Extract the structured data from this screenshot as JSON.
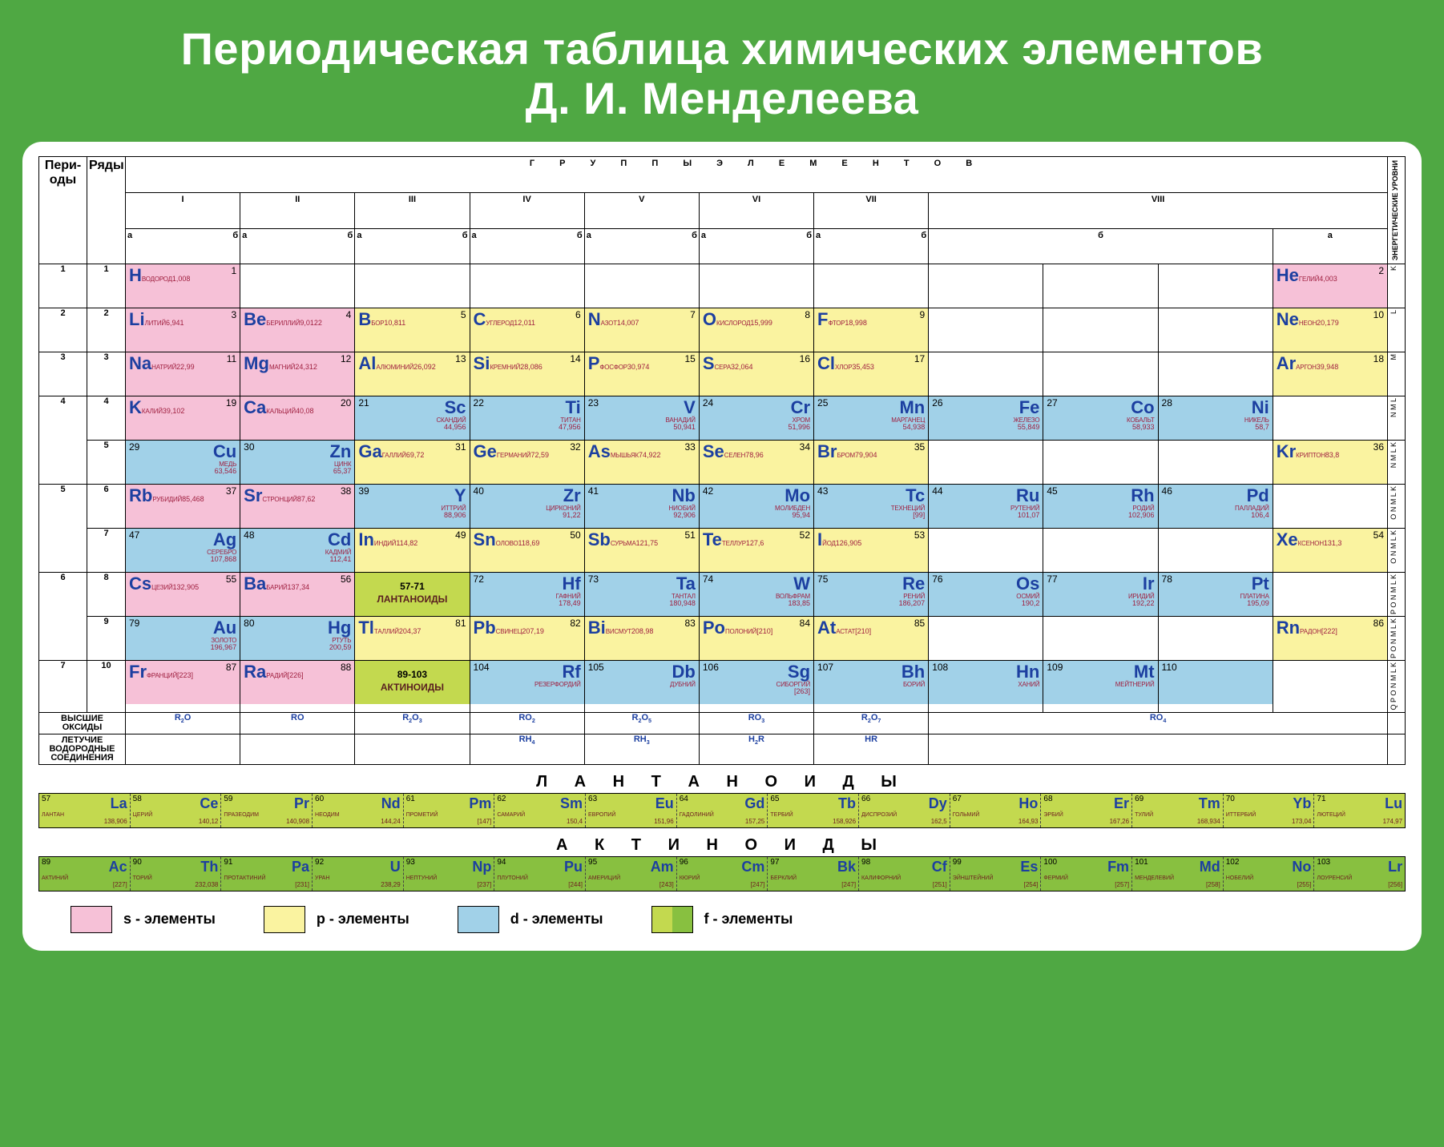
{
  "title_line1": "Периодическая таблица химических элементов",
  "title_line2": "Д. И. Менделеева",
  "headers": {
    "periods": "Пери-оды",
    "rows": "Ряды",
    "groups": "Г Р У П П Ы   Э Л Е М Е Н Т О В",
    "roman": [
      "I",
      "II",
      "III",
      "IV",
      "V",
      "VI",
      "VII",
      "VIII"
    ],
    "a": "а",
    "b": "б",
    "energy_levels": "ЭНЕРГЕТИЧЕСКИЕ УРОВНИ"
  },
  "colors": {
    "bg": "#4fa843",
    "s": "#f6c1d7",
    "p": "#faf3a0",
    "d": "#a1d1e8",
    "f1": "#c3d94f",
    "f2": "#88c040",
    "symbol": "#1c3fa0",
    "name": "#a02040"
  },
  "periods": [
    "1",
    "2",
    "3",
    "4",
    "5",
    "6",
    "7"
  ],
  "rows": [
    "1",
    "2",
    "3",
    "4",
    "5",
    "6",
    "7",
    "8",
    "9",
    "10"
  ],
  "side_labels": [
    "K",
    "L",
    "M",
    "N M L",
    "N M L K",
    "O N M L K",
    "O N M L K",
    "P O N M L K",
    "P O N M L K",
    "Q P O N M L K"
  ],
  "elements": {
    "H": {
      "num": "1",
      "sym": "H",
      "name": "ВОДОРОД",
      "mass": "1,008",
      "cls": "s-el"
    },
    "He": {
      "num": "2",
      "sym": "He",
      "name": "ГЕЛИЙ",
      "mass": "4,003",
      "cls": "s-el"
    },
    "Li": {
      "num": "3",
      "sym": "Li",
      "name": "ЛИТИЙ",
      "mass": "6,941",
      "cls": "s-el"
    },
    "Be": {
      "num": "4",
      "sym": "Be",
      "name": "БЕРИЛЛИЙ",
      "mass": "9,0122",
      "cls": "s-el"
    },
    "B": {
      "num": "5",
      "sym": "B",
      "name": "БОР",
      "mass": "10,811",
      "cls": "p-el"
    },
    "C": {
      "num": "6",
      "sym": "C",
      "name": "УГЛЕРОД",
      "mass": "12,011",
      "cls": "p-el"
    },
    "N": {
      "num": "7",
      "sym": "N",
      "name": "АЗОТ",
      "mass": "14,007",
      "cls": "p-el"
    },
    "O": {
      "num": "8",
      "sym": "O",
      "name": "КИСЛОРОД",
      "mass": "15,999",
      "cls": "p-el"
    },
    "F": {
      "num": "9",
      "sym": "F",
      "name": "ФТОР",
      "mass": "18,998",
      "cls": "p-el"
    },
    "Ne": {
      "num": "10",
      "sym": "Ne",
      "name": "НЕОН",
      "mass": "20,179",
      "cls": "p-el"
    },
    "Na": {
      "num": "11",
      "sym": "Na",
      "name": "НАТРИЙ",
      "mass": "22,99",
      "cls": "s-el"
    },
    "Mg": {
      "num": "12",
      "sym": "Mg",
      "name": "МАГНИЙ",
      "mass": "24,312",
      "cls": "s-el"
    },
    "Al": {
      "num": "13",
      "sym": "Al",
      "name": "АЛЮМИНИЙ",
      "mass": "26,092",
      "cls": "p-el"
    },
    "Si": {
      "num": "14",
      "sym": "Si",
      "name": "КРЕМНИЙ",
      "mass": "28,086",
      "cls": "p-el"
    },
    "P": {
      "num": "15",
      "sym": "P",
      "name": "ФОСФОР",
      "mass": "30,974",
      "cls": "p-el"
    },
    "S": {
      "num": "16",
      "sym": "S",
      "name": "СЕРА",
      "mass": "32,064",
      "cls": "p-el"
    },
    "Cl": {
      "num": "17",
      "sym": "Cl",
      "name": "ХЛОР",
      "mass": "35,453",
      "cls": "p-el"
    },
    "Ar": {
      "num": "18",
      "sym": "Ar",
      "name": "АРГОН",
      "mass": "39,948",
      "cls": "p-el"
    },
    "K": {
      "num": "19",
      "sym": "K",
      "name": "КАЛИЙ",
      "mass": "39,102",
      "cls": "s-el"
    },
    "Ca": {
      "num": "20",
      "sym": "Ca",
      "name": "КАЛЬЦИЙ",
      "mass": "40,08",
      "cls": "s-el"
    },
    "Sc": {
      "num": "21",
      "sym": "Sc",
      "name": "СКАНДИЙ",
      "mass": "44,956",
      "cls": "d-el"
    },
    "Ti": {
      "num": "22",
      "sym": "Ti",
      "name": "ТИТАН",
      "mass": "47,956",
      "cls": "d-el"
    },
    "V": {
      "num": "23",
      "sym": "V",
      "name": "ВАНАДИЙ",
      "mass": "50,941",
      "cls": "d-el"
    },
    "Cr": {
      "num": "24",
      "sym": "Cr",
      "name": "ХРОМ",
      "mass": "51,996",
      "cls": "d-el"
    },
    "Mn": {
      "num": "25",
      "sym": "Mn",
      "name": "МАРГАНЕЦ",
      "mass": "54,938",
      "cls": "d-el"
    },
    "Fe": {
      "num": "26",
      "sym": "Fe",
      "name": "ЖЕЛЕЗО",
      "mass": "55,849",
      "cls": "d-el"
    },
    "Co": {
      "num": "27",
      "sym": "Co",
      "name": "КОБАЛЬТ",
      "mass": "58,933",
      "cls": "d-el"
    },
    "Ni": {
      "num": "28",
      "sym": "Ni",
      "name": "НИКЕЛЬ",
      "mass": "58,7",
      "cls": "d-el"
    },
    "Cu": {
      "num": "29",
      "sym": "Cu",
      "name": "МЕДЬ",
      "mass": "63,546",
      "cls": "d-el"
    },
    "Zn": {
      "num": "30",
      "sym": "Zn",
      "name": "ЦИНК",
      "mass": "65,37",
      "cls": "d-el"
    },
    "Ga": {
      "num": "31",
      "sym": "Ga",
      "name": "ГАЛЛИЙ",
      "mass": "69,72",
      "cls": "p-el"
    },
    "Ge": {
      "num": "32",
      "sym": "Ge",
      "name": "ГЕРМАНИЙ",
      "mass": "72,59",
      "cls": "p-el"
    },
    "As": {
      "num": "33",
      "sym": "As",
      "name": "МЫШЬЯК",
      "mass": "74,922",
      "cls": "p-el"
    },
    "Se": {
      "num": "34",
      "sym": "Se",
      "name": "СЕЛЕН",
      "mass": "78,96",
      "cls": "p-el"
    },
    "Br": {
      "num": "35",
      "sym": "Br",
      "name": "БРОМ",
      "mass": "79,904",
      "cls": "p-el"
    },
    "Kr": {
      "num": "36",
      "sym": "Kr",
      "name": "КРИПТОН",
      "mass": "83,8",
      "cls": "p-el"
    },
    "Rb": {
      "num": "37",
      "sym": "Rb",
      "name": "РУБИДИЙ",
      "mass": "85,468",
      "cls": "s-el"
    },
    "Sr": {
      "num": "38",
      "sym": "Sr",
      "name": "СТРОНЦИЙ",
      "mass": "87,62",
      "cls": "s-el"
    },
    "Y": {
      "num": "39",
      "sym": "Y",
      "name": "ИТТРИЙ",
      "mass": "88,906",
      "cls": "d-el"
    },
    "Zr": {
      "num": "40",
      "sym": "Zr",
      "name": "ЦИРКОНИЙ",
      "mass": "91,22",
      "cls": "d-el"
    },
    "Nb": {
      "num": "41",
      "sym": "Nb",
      "name": "НИОБИЙ",
      "mass": "92,906",
      "cls": "d-el"
    },
    "Mo": {
      "num": "42",
      "sym": "Mo",
      "name": "МОЛИБДЕН",
      "mass": "95,94",
      "cls": "d-el"
    },
    "Tc": {
      "num": "43",
      "sym": "Tc",
      "name": "ТЕХНЕЦИЙ",
      "mass": "[99]",
      "cls": "d-el"
    },
    "Ru": {
      "num": "44",
      "sym": "Ru",
      "name": "РУТЕНИЙ",
      "mass": "101,07",
      "cls": "d-el"
    },
    "Rh": {
      "num": "45",
      "sym": "Rh",
      "name": "РОДИЙ",
      "mass": "102,906",
      "cls": "d-el"
    },
    "Pd": {
      "num": "46",
      "sym": "Pd",
      "name": "ПАЛЛАДИЙ",
      "mass": "106,4",
      "cls": "d-el"
    },
    "Ag": {
      "num": "47",
      "sym": "Ag",
      "name": "СЕРЕБРО",
      "mass": "107,868",
      "cls": "d-el"
    },
    "Cd": {
      "num": "48",
      "sym": "Cd",
      "name": "КАДМИЙ",
      "mass": "112,41",
      "cls": "d-el"
    },
    "In": {
      "num": "49",
      "sym": "In",
      "name": "ИНДИЙ",
      "mass": "114,82",
      "cls": "p-el"
    },
    "Sn": {
      "num": "50",
      "sym": "Sn",
      "name": "ОЛОВО",
      "mass": "118,69",
      "cls": "p-el"
    },
    "Sb": {
      "num": "51",
      "sym": "Sb",
      "name": "СУРЬМА",
      "mass": "121,75",
      "cls": "p-el"
    },
    "Te": {
      "num": "52",
      "sym": "Te",
      "name": "ТЕЛЛУР",
      "mass": "127,6",
      "cls": "p-el"
    },
    "I": {
      "num": "53",
      "sym": "I",
      "name": "ЙОД",
      "mass": "126,905",
      "cls": "p-el"
    },
    "Xe": {
      "num": "54",
      "sym": "Xe",
      "name": "КСЕНОН",
      "mass": "131,3",
      "cls": "p-el"
    },
    "Cs": {
      "num": "55",
      "sym": "Cs",
      "name": "ЦЕЗИЙ",
      "mass": "132,905",
      "cls": "s-el"
    },
    "Ba": {
      "num": "56",
      "sym": "Ba",
      "name": "БАРИЙ",
      "mass": "137,34",
      "cls": "s-el"
    },
    "Hf": {
      "num": "72",
      "sym": "Hf",
      "name": "ГАФНИЙ",
      "mass": "178,49",
      "cls": "d-el"
    },
    "Ta": {
      "num": "73",
      "sym": "Ta",
      "name": "ТАНТАЛ",
      "mass": "180,948",
      "cls": "d-el"
    },
    "W": {
      "num": "74",
      "sym": "W",
      "name": "ВОЛЬФРАМ",
      "mass": "183,85",
      "cls": "d-el"
    },
    "Re": {
      "num": "75",
      "sym": "Re",
      "name": "РЕНИЙ",
      "mass": "186,207",
      "cls": "d-el"
    },
    "Os": {
      "num": "76",
      "sym": "Os",
      "name": "ОСМИЙ",
      "mass": "190,2",
      "cls": "d-el"
    },
    "Ir": {
      "num": "77",
      "sym": "Ir",
      "name": "ИРИДИЙ",
      "mass": "192,22",
      "cls": "d-el"
    },
    "Pt": {
      "num": "78",
      "sym": "Pt",
      "name": "ПЛАТИНА",
      "mass": "195,09",
      "cls": "d-el"
    },
    "Au": {
      "num": "79",
      "sym": "Au",
      "name": "ЗОЛОТО",
      "mass": "196,967",
      "cls": "d-el"
    },
    "Hg": {
      "num": "80",
      "sym": "Hg",
      "name": "РТУТЬ",
      "mass": "200,59",
      "cls": "d-el"
    },
    "Tl": {
      "num": "81",
      "sym": "Tl",
      "name": "ТАЛЛИЙ",
      "mass": "204,37",
      "cls": "p-el"
    },
    "Pb": {
      "num": "82",
      "sym": "Pb",
      "name": "СВИНЕЦ",
      "mass": "207,19",
      "cls": "p-el"
    },
    "Bi": {
      "num": "83",
      "sym": "Bi",
      "name": "ВИСМУТ",
      "mass": "208,98",
      "cls": "p-el"
    },
    "Po": {
      "num": "84",
      "sym": "Po",
      "name": "ПОЛОНИЙ",
      "mass": "[210]",
      "cls": "p-el"
    },
    "At": {
      "num": "85",
      "sym": "At",
      "name": "АСТАТ",
      "mass": "[210]",
      "cls": "p-el"
    },
    "Rn": {
      "num": "86",
      "sym": "Rn",
      "name": "РАДОН",
      "mass": "[222]",
      "cls": "p-el"
    },
    "Fr": {
      "num": "87",
      "sym": "Fr",
      "name": "ФРАНЦИЙ",
      "mass": "[223]",
      "cls": "s-el"
    },
    "Ra": {
      "num": "88",
      "sym": "Ra",
      "name": "РАДИЙ",
      "mass": "[226]",
      "cls": "s-el"
    },
    "Rf": {
      "num": "104",
      "sym": "Rf",
      "name": "РЕЗЕРФОРДИЙ",
      "mass": "",
      "cls": "d-el"
    },
    "Db": {
      "num": "105",
      "sym": "Db",
      "name": "ДУБНИЙ",
      "mass": "",
      "cls": "d-el"
    },
    "Sg": {
      "num": "106",
      "sym": "Sg",
      "name": "СИБОРГИЙ",
      "mass": "[263]",
      "cls": "d-el"
    },
    "Bh": {
      "num": "107",
      "sym": "Bh",
      "name": "БОРИЙ",
      "mass": "",
      "cls": "d-el"
    },
    "Hn": {
      "num": "108",
      "sym": "Hn",
      "name": "ХАНИЙ",
      "mass": "",
      "cls": "d-el"
    },
    "Mt": {
      "num": "109",
      "sym": "Mt",
      "name": "МЕЙТНЕРИЙ",
      "mass": "",
      "cls": "d-el"
    },
    "E110": {
      "num": "110",
      "sym": "",
      "name": "",
      "mass": "",
      "cls": "d-el"
    }
  },
  "lanth_label": {
    "range": "57-71",
    "text": "ЛАНТАНОИДЫ"
  },
  "act_label": {
    "range": "89-103",
    "text": "АКТИНОИДЫ"
  },
  "oxides": {
    "label": "ВЫСШИЕ ОКСИДЫ",
    "vals": [
      "R₂O",
      "RO",
      "R₂O₃",
      "RO₂",
      "R₂O₅",
      "RO₃",
      "R₂O₇",
      "RO₄"
    ]
  },
  "hydrides": {
    "label": "ЛЕТУЧИЕ ВОДОРОДНЫЕ СОЕДИНЕНИЯ",
    "vals": [
      "",
      "",
      "",
      "RH₄",
      "RH₃",
      "H₂R",
      "HR",
      ""
    ]
  },
  "series": {
    "lanth_title": "Л А Н Т А Н О И Д Ы",
    "act_title": "А К Т И Н О И Д Ы",
    "lanth": [
      {
        "num": "57",
        "sym": "La",
        "name": "ЛАНТАН",
        "mass": "138,906"
      },
      {
        "num": "58",
        "sym": "Ce",
        "name": "ЦЕРИЙ",
        "mass": "140,12"
      },
      {
        "num": "59",
        "sym": "Pr",
        "name": "ПРАЗЕОДИМ",
        "mass": "140,908"
      },
      {
        "num": "60",
        "sym": "Nd",
        "name": "НЕОДИМ",
        "mass": "144,24"
      },
      {
        "num": "61",
        "sym": "Pm",
        "name": "ПРОМЕТИЙ",
        "mass": "[147]"
      },
      {
        "num": "62",
        "sym": "Sm",
        "name": "САМАРИЙ",
        "mass": "150,4"
      },
      {
        "num": "63",
        "sym": "Eu",
        "name": "ЕВРОПИЙ",
        "mass": "151,96"
      },
      {
        "num": "64",
        "sym": "Gd",
        "name": "ГАДОЛИНИЙ",
        "mass": "157,25"
      },
      {
        "num": "65",
        "sym": "Tb",
        "name": "ТЕРБИЙ",
        "mass": "158,926"
      },
      {
        "num": "66",
        "sym": "Dy",
        "name": "ДИСПРОЗИЙ",
        "mass": "162,5"
      },
      {
        "num": "67",
        "sym": "Ho",
        "name": "ГОЛЬМИЙ",
        "mass": "164,93"
      },
      {
        "num": "68",
        "sym": "Er",
        "name": "ЭРБИЙ",
        "mass": "167,26"
      },
      {
        "num": "69",
        "sym": "Tm",
        "name": "ТУЛИЙ",
        "mass": "168,934"
      },
      {
        "num": "70",
        "sym": "Yb",
        "name": "ИТТЕРБИЙ",
        "mass": "173,04"
      },
      {
        "num": "71",
        "sym": "Lu",
        "name": "ЛЮТЕЦИЙ",
        "mass": "174,97"
      }
    ],
    "act": [
      {
        "num": "89",
        "sym": "Ac",
        "name": "АКТИНИЙ",
        "mass": "[227]"
      },
      {
        "num": "90",
        "sym": "Th",
        "name": "ТОРИЙ",
        "mass": "232,038"
      },
      {
        "num": "91",
        "sym": "Pa",
        "name": "ПРОТАКТИНИЙ",
        "mass": "[231]"
      },
      {
        "num": "92",
        "sym": "U",
        "name": "УРАН",
        "mass": "238,29"
      },
      {
        "num": "93",
        "sym": "Np",
        "name": "НЕПТУНИЙ",
        "mass": "[237]"
      },
      {
        "num": "94",
        "sym": "Pu",
        "name": "ПЛУТОНИЙ",
        "mass": "[244]"
      },
      {
        "num": "95",
        "sym": "Am",
        "name": "АМЕРИЦИЙ",
        "mass": "[243]"
      },
      {
        "num": "96",
        "sym": "Cm",
        "name": "КЮРИЙ",
        "mass": "[247]"
      },
      {
        "num": "97",
        "sym": "Bk",
        "name": "БЕРКЛИЙ",
        "mass": "[247]"
      },
      {
        "num": "98",
        "sym": "Cf",
        "name": "КАЛИФОРНИЙ",
        "mass": "[251]"
      },
      {
        "num": "99",
        "sym": "Es",
        "name": "ЭЙНШТЕЙНИЙ",
        "mass": "[254]"
      },
      {
        "num": "100",
        "sym": "Fm",
        "name": "ФЕРМИЙ",
        "mass": "[257]"
      },
      {
        "num": "101",
        "sym": "Md",
        "name": "МЕНДЕЛЕВИЙ",
        "mass": "[258]"
      },
      {
        "num": "102",
        "sym": "No",
        "name": "НОБЕЛИЙ",
        "mass": "[255]"
      },
      {
        "num": "103",
        "sym": "Lr",
        "name": "ЛОУРЕНСИЙ",
        "mass": "[256]"
      }
    ]
  },
  "legend": {
    "s": "s - элементы",
    "p": "p - элементы",
    "d": "d - элементы",
    "f": "f - элементы"
  },
  "layout": [
    {
      "period": "1",
      "row": "1",
      "cells": [
        "H",
        "",
        "",
        "",
        "",
        "",
        "",
        "",
        "",
        "",
        "He"
      ]
    },
    {
      "period": "2",
      "row": "2",
      "cells": [
        "Li",
        "Be",
        "B",
        "C",
        "N",
        "O",
        "F",
        "",
        "",
        "",
        "Ne"
      ]
    },
    {
      "period": "3",
      "row": "3",
      "cells": [
        "Na",
        "Mg",
        "Al",
        "Si",
        "P",
        "S",
        "Cl",
        "",
        "",
        "",
        "Ar"
      ]
    },
    {
      "period": "4",
      "row": "4",
      "cells": [
        "K",
        "Ca",
        "Sc:r",
        "Ti:r",
        "V:r",
        "Cr:r",
        "Mn:r",
        "Fe:r",
        "Co:r",
        "Ni:r",
        ""
      ]
    },
    {
      "period": "",
      "row": "5",
      "cells": [
        "Cu:r",
        "Zn:r",
        "Ga",
        "Ge",
        "As",
        "Se",
        "Br",
        "",
        "",
        "",
        "Kr"
      ]
    },
    {
      "period": "5",
      "row": "6",
      "cells": [
        "Rb",
        "Sr",
        "Y:r",
        "Zr:r",
        "Nb:r",
        "Mo:r",
        "Tc:r",
        "Ru:r",
        "Rh:r",
        "Pd:r",
        ""
      ]
    },
    {
      "period": "",
      "row": "7",
      "cells": [
        "Ag:r",
        "Cd:r",
        "In",
        "Sn",
        "Sb",
        "Te",
        "I",
        "",
        "",
        "",
        "Xe"
      ]
    },
    {
      "period": "6",
      "row": "8",
      "cells": [
        "Cs",
        "Ba",
        "LANTH",
        "Hf:r",
        "Ta:r",
        "W:r",
        "Re:r",
        "Os:r",
        "Ir:r",
        "Pt:r",
        ""
      ]
    },
    {
      "period": "",
      "row": "9",
      "cells": [
        "Au:r",
        "Hg:r",
        "Tl",
        "Pb",
        "Bi",
        "Po",
        "At",
        "",
        "",
        "",
        "Rn"
      ]
    },
    {
      "period": "7",
      "row": "10",
      "cells": [
        "Fr",
        "Ra",
        "ACT",
        "Rf:r",
        "Db:r",
        "Sg:r",
        "Bh:r",
        "Hn:r",
        "Mt:r",
        "E110:r",
        ""
      ]
    }
  ]
}
